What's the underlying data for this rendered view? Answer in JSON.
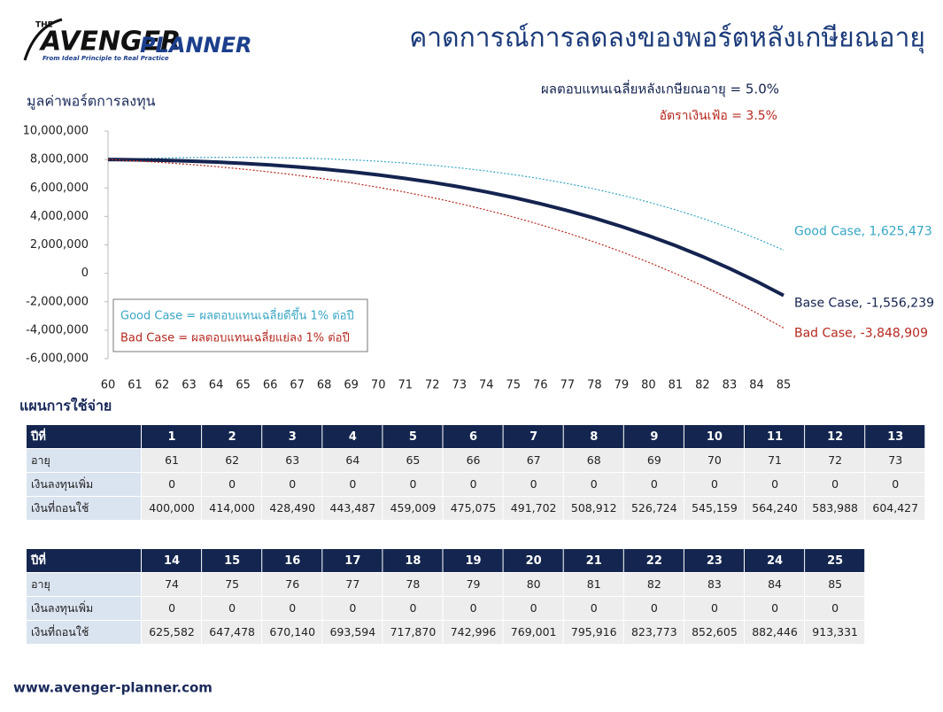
{
  "header": {
    "logo": {
      "small": "THE",
      "name1": "AVENGER",
      "name2": "PLANNER",
      "tagline": "From Ideal Principle to Real Practice"
    },
    "title": "คาดการณ์การลดลงของพอร์ตหลังเกษียณอายุ"
  },
  "chart_data": {
    "type": "line",
    "y_label": "มูลค่าพอร์ตการลงทุน",
    "annotations": {
      "return": "ผลตอบแทนเฉลี่ยหลังเกษียณอายุ = 5.0%",
      "inflation": "อัตราเงินเฟ้อ = 3.5%",
      "good_note": "Good Case = ผลตอบแทนเฉลี่ยดีขึ้น 1% ต่อปี",
      "bad_note": "Bad Case = ผลตอบแทนเฉลี่ยแย่ลง 1% ต่อปี"
    },
    "x": [
      60,
      61,
      62,
      63,
      64,
      65,
      66,
      67,
      68,
      69,
      70,
      71,
      72,
      73,
      74,
      75,
      76,
      77,
      78,
      79,
      80,
      81,
      82,
      83,
      84,
      85
    ],
    "xlim": [
      60,
      85
    ],
    "xticks": [
      60,
      61,
      62,
      63,
      64,
      65,
      66,
      67,
      68,
      69,
      70,
      71,
      72,
      73,
      74,
      75,
      76,
      77,
      78,
      79,
      80,
      81,
      82,
      83,
      84,
      85
    ],
    "ylim": [
      -6000000,
      10000000
    ],
    "yticks": [
      {
        "value": -6000000,
        "label": "-6,000,000"
      },
      {
        "value": -4000000,
        "label": "-4,000,000"
      },
      {
        "value": -2000000,
        "label": "-2,000,000"
      },
      0,
      {
        "value": 2000000,
        "label": "2,000,000"
      },
      {
        "value": 4000000,
        "label": "4,000,000"
      },
      {
        "value": 6000000,
        "label": "6,000,000"
      },
      {
        "value": 8000000,
        "label": "8,000,000"
      },
      {
        "value": 10000000,
        "label": "10,000,000"
      }
    ],
    "grid": false,
    "series": [
      {
        "name": "Good Case",
        "color": "#37a6c4",
        "style": "dotted",
        "end_label": "Good Case, 1,625,473",
        "values": [
          8000000,
          8056000,
          8101000,
          8132000,
          8150000,
          8153000,
          8138000,
          8105000,
          8052000,
          7977000,
          7878000,
          7752000,
          7598000,
          7414000,
          7195000,
          6941000,
          6647000,
          6310000,
          5928000,
          5496000,
          5011000,
          4468000,
          3863000,
          3191000,
          2447000,
          1625473
        ]
      },
      {
        "name": "Base Case",
        "color": "#14234f",
        "style": "solid",
        "end_label": "Base Case, -1,556,239",
        "values": [
          8000000,
          7980000,
          7944000,
          7892000,
          7821000,
          7730000,
          7617000,
          7482000,
          7322000,
          7135000,
          6919000,
          6672000,
          6393000,
          6078000,
          5725000,
          5331000,
          4894000,
          4411000,
          3877000,
          3291000,
          2648000,
          1945000,
          1177000,
          341000,
          -569000,
          -1556239
        ]
      },
      {
        "name": "Bad Case",
        "color": "#b5281f",
        "style": "dotted",
        "end_label": "Bad Case, -3,848,909",
        "values": [
          8000000,
          7904000,
          7790000,
          7656000,
          7501000,
          7323000,
          7122000,
          6896000,
          6642000,
          6360000,
          6047000,
          5703000,
          5323000,
          4908000,
          4453000,
          3958000,
          3419000,
          2835000,
          2202000,
          1517000,
          778000,
          -19000,
          -876000,
          -1798000,
          -2788000,
          -3848909
        ]
      }
    ]
  },
  "plan_title": "แผนการใช้จ่าย",
  "tables": [
    {
      "columns": [
        "ปีที่",
        1,
        2,
        3,
        4,
        5,
        6,
        7,
        8,
        9,
        10,
        11,
        12,
        13
      ],
      "rows": [
        [
          "อายุ",
          61,
          62,
          63,
          64,
          65,
          66,
          67,
          68,
          69,
          70,
          71,
          72,
          73
        ],
        [
          "เงินลงทุนเพิ่ม",
          0,
          0,
          0,
          0,
          0,
          0,
          0,
          0,
          0,
          0,
          0,
          0,
          0
        ],
        [
          "เงินที่ถอนใช้",
          "400,000",
          "414,000",
          "428,490",
          "443,487",
          "459,009",
          "475,075",
          "491,702",
          "508,912",
          "526,724",
          "545,159",
          "564,240",
          "583,988",
          "604,427"
        ]
      ]
    },
    {
      "columns": [
        "ปีที่",
        14,
        15,
        16,
        17,
        18,
        19,
        20,
        21,
        22,
        23,
        24,
        25
      ],
      "rows": [
        [
          "อายุ",
          74,
          75,
          76,
          77,
          78,
          79,
          80,
          81,
          82,
          83,
          84,
          85
        ],
        [
          "เงินลงทุนเพิ่ม",
          0,
          0,
          0,
          0,
          0,
          0,
          0,
          0,
          0,
          0,
          0,
          0
        ],
        [
          "เงินที่ถอนใช้",
          "625,582",
          "647,478",
          "670,140",
          "693,594",
          "717,870",
          "742,996",
          "769,001",
          "795,916",
          "823,773",
          "852,605",
          "882,446",
          "913,331"
        ]
      ]
    }
  ],
  "footer": "www.avenger-planner.com"
}
